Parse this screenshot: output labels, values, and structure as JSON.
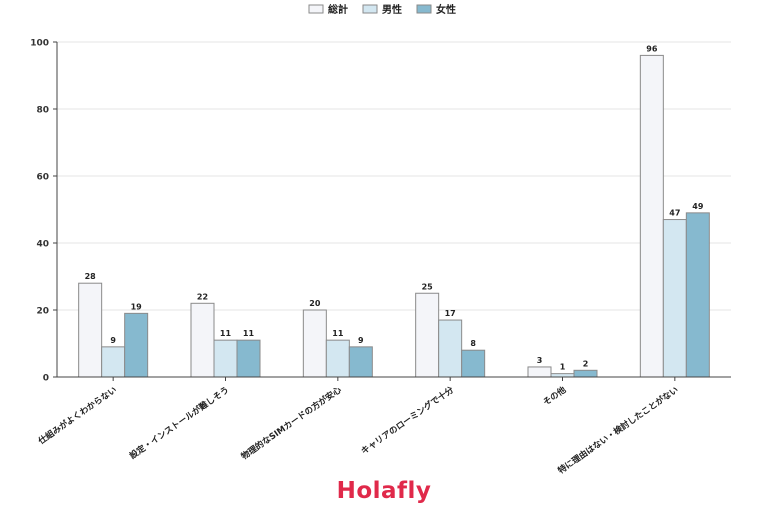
{
  "brand": {
    "name": "Holafly",
    "color": "#e0294a"
  },
  "chart_data": {
    "type": "bar",
    "title": "",
    "xlabel": "",
    "ylabel": "",
    "ylim": [
      0,
      100
    ],
    "yticks": [
      0,
      20,
      40,
      60,
      80,
      100
    ],
    "grid": true,
    "legend": "top-center",
    "categories": [
      "仕組みがよくわからない",
      "設定・インストールが難しそう",
      "物理的なSIMカードの方が安心",
      "キャリアのローミングで十分",
      "その他",
      "特に理由はない・検討したことがない"
    ],
    "series": [
      {
        "name": "総計",
        "color": "#f4f5f9",
        "values": [
          28,
          22,
          20,
          25,
          3,
          96
        ]
      },
      {
        "name": "男性",
        "color": "#d3e7f1",
        "values": [
          9,
          11,
          11,
          17,
          1,
          47
        ]
      },
      {
        "name": "女性",
        "color": "#86b9cf",
        "values": [
          19,
          11,
          9,
          8,
          2,
          49
        ]
      }
    ]
  }
}
